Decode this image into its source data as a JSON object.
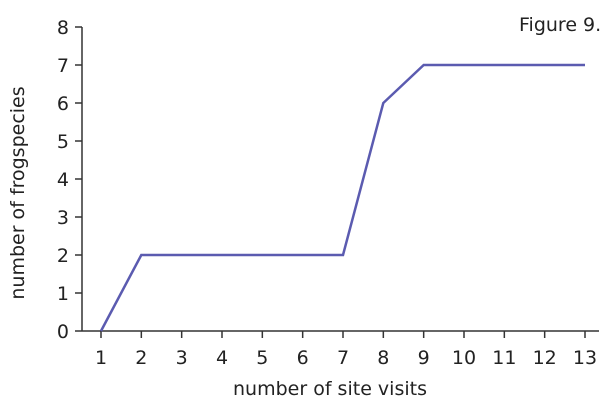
{
  "figure_label": "Figure 9.",
  "colors": {
    "line": "#5b5bb0",
    "axis": "#333333",
    "text": "#222222"
  },
  "chart_data": {
    "type": "line",
    "title": "",
    "xlabel": "number of site visits",
    "ylabel": "number of frogspecies",
    "x_ticks": [
      "1",
      "2",
      "3",
      "4",
      "5",
      "6",
      "7",
      "8",
      "9",
      "10",
      "11",
      "12",
      "13"
    ],
    "y_ticks": [
      "0",
      "1",
      "2",
      "3",
      "4",
      "5",
      "6",
      "7",
      "8"
    ],
    "xlim": [
      1,
      13
    ],
    "ylim": [
      0,
      8
    ],
    "grid": false,
    "series": [
      {
        "x": [
          1,
          2,
          7,
          8,
          9,
          13
        ],
        "y": [
          0,
          2,
          2,
          6,
          7,
          7
        ]
      }
    ]
  }
}
